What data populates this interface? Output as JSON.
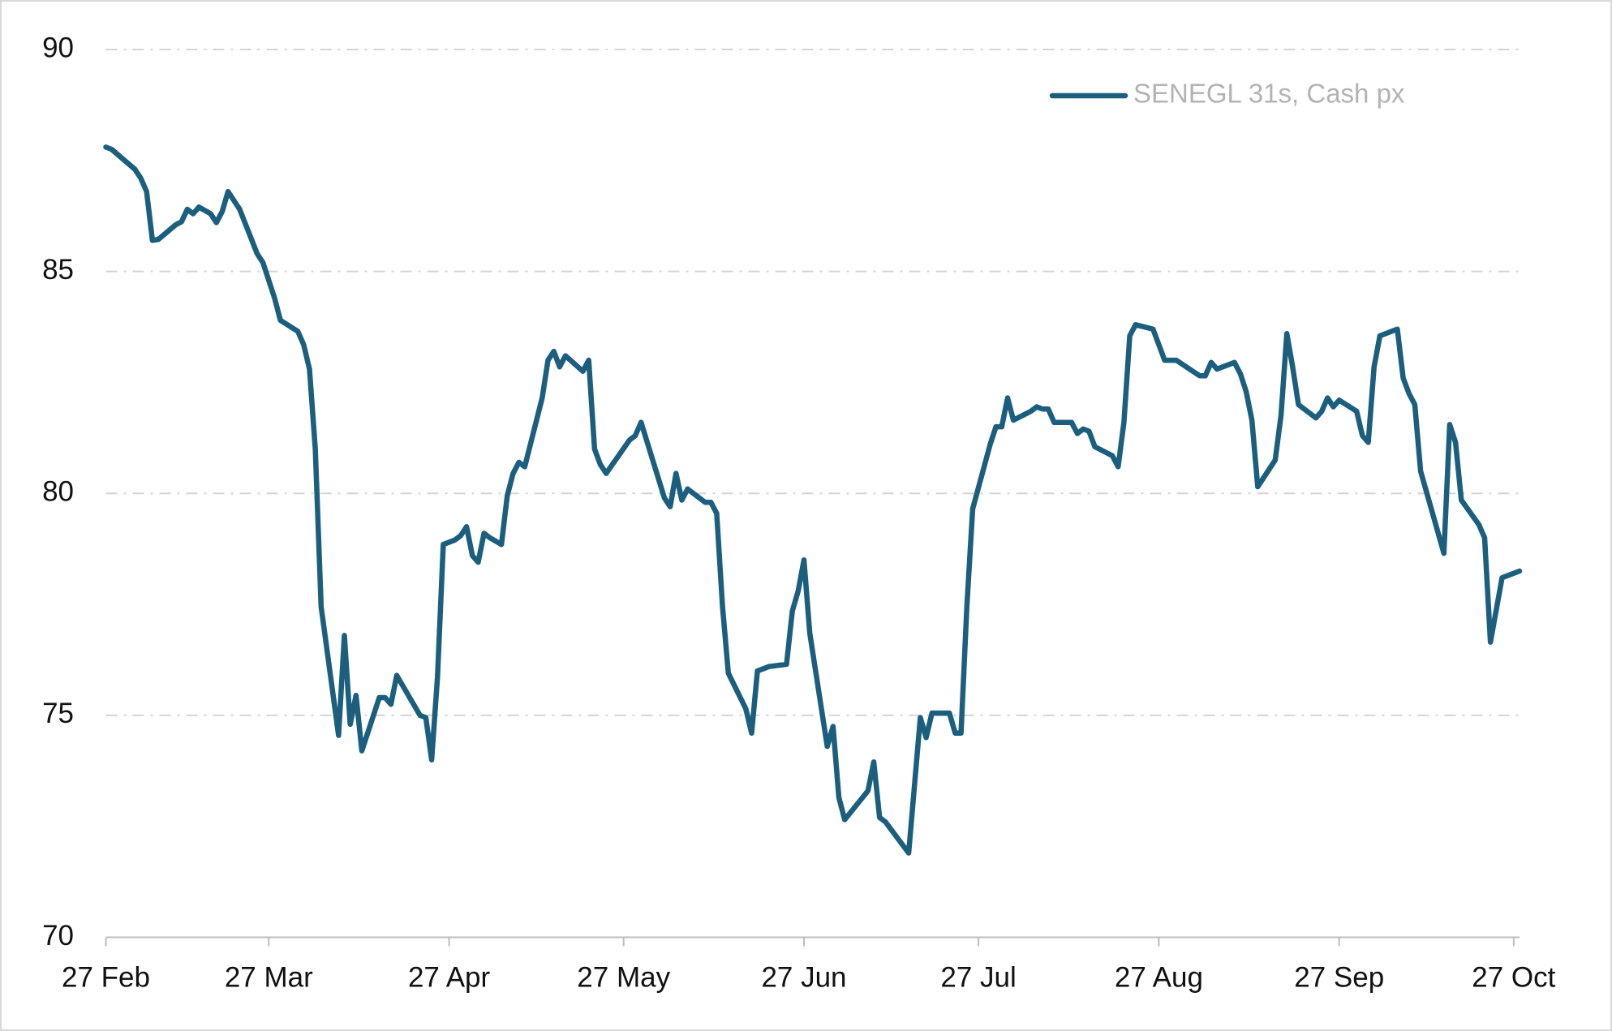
{
  "chart_data": {
    "type": "line",
    "x": [
      "27 Feb",
      "28 Feb",
      "4 Mar",
      "5 Mar",
      "6 Mar",
      "7 Mar",
      "8 Mar",
      "11 Mar",
      "12 Mar",
      "13 Mar",
      "14 Mar",
      "15 Mar",
      "17 Mar",
      "18 Mar",
      "19 Mar",
      "20 Mar",
      "22 Mar",
      "25 Mar",
      "26 Mar",
      "28 Mar",
      "29 Mar",
      "1 Apr",
      "2 Apr",
      "3 Apr",
      "4 Apr",
      "5 Apr",
      "8 Apr",
      "9 Apr",
      "10 Apr",
      "11 Apr",
      "12 Apr",
      "15 Apr",
      "16 Apr",
      "17 Apr",
      "18 Apr",
      "22 Apr",
      "23 Apr",
      "24 Apr",
      "25 Apr",
      "26 Apr",
      "28 Apr",
      "29 Apr",
      "30 Apr",
      "1 May",
      "2 May",
      "3 May",
      "4 May",
      "6 May",
      "7 May",
      "8 May",
      "9 May",
      "10 May",
      "13 May",
      "14 May",
      "15 May",
      "16 May",
      "17 May",
      "20 May",
      "21 May",
      "22 May",
      "23 May",
      "24 May",
      "28 May",
      "29 May",
      "30 May",
      "3 Jun",
      "4 Jun",
      "5 Jun",
      "6 Jun",
      "7 Jun",
      "10 Jun",
      "11 Jun",
      "12 Jun",
      "13 Jun",
      "14 Jun",
      "17 Jun",
      "18 Jun",
      "19 Jun",
      "20 Jun",
      "21 Jun",
      "24 Jun",
      "25 Jun",
      "26 Jun",
      "27 Jun",
      "28 Jun",
      "1 Jul",
      "2 Jul",
      "3 Jul",
      "4 Jul",
      "8 Jul",
      "9 Jul",
      "10 Jul",
      "11 Jul",
      "15 Jul",
      "17 Jul",
      "18 Jul",
      "19 Jul",
      "22 Jul",
      "23 Jul",
      "24 Jul",
      "25 Jul",
      "26 Jul",
      "29 Jul",
      "30 Jul",
      "31 Jul",
      "1 Aug",
      "2 Aug",
      "5 Aug",
      "6 Aug",
      "7 Aug",
      "8 Aug",
      "9 Aug",
      "12 Aug",
      "13 Aug",
      "14 Aug",
      "15 Aug",
      "16 Aug",
      "19 Aug",
      "20 Aug",
      "21 Aug",
      "22 Aug",
      "23 Aug",
      "26 Aug",
      "27 Aug",
      "28 Aug",
      "30 Aug",
      "3 Sep",
      "4 Sep",
      "5 Sep",
      "6 Sep",
      "9 Sep",
      "10 Sep",
      "11 Sep",
      "12 Sep",
      "13 Sep",
      "16 Sep",
      "17 Sep",
      "18 Sep",
      "19 Sep",
      "20 Sep",
      "23 Sep",
      "24 Sep",
      "25 Sep",
      "26 Sep",
      "27 Sep",
      "30 Sep",
      "1 Oct",
      "2 Oct",
      "3 Oct",
      "4 Oct",
      "7 Oct",
      "8 Oct",
      "9 Oct",
      "10 Oct",
      "11 Oct",
      "15 Oct",
      "16 Oct",
      "17 Oct",
      "18 Oct",
      "21 Oct",
      "22 Oct",
      "23 Oct",
      "25 Oct",
      "28 Oct"
    ],
    "series": [
      {
        "name": "SENEGL 31s, Cash px",
        "color": "#1b5e7e",
        "values": [
          87.8,
          87.75,
          87.3,
          87.1,
          86.8,
          85.7,
          85.72,
          86.05,
          86.12,
          86.4,
          86.3,
          86.45,
          86.3,
          86.1,
          86.35,
          86.8,
          86.4,
          85.4,
          85.2,
          84.4,
          83.9,
          83.65,
          83.35,
          82.8,
          81.0,
          77.45,
          74.55,
          76.8,
          74.8,
          75.45,
          74.2,
          75.4,
          75.4,
          75.25,
          75.9,
          75.0,
          74.95,
          74.0,
          75.85,
          78.85,
          78.95,
          79.05,
          79.25,
          78.6,
          78.45,
          79.1,
          79.0,
          78.85,
          79.95,
          80.45,
          80.7,
          80.6,
          82.15,
          83.0,
          83.2,
          82.85,
          83.1,
          82.75,
          83.0,
          81.0,
          80.65,
          80.45,
          81.2,
          81.3,
          81.6,
          79.9,
          79.7,
          80.45,
          79.85,
          80.1,
          79.8,
          79.8,
          79.55,
          77.45,
          75.95,
          75.15,
          74.6,
          76.0,
          76.05,
          76.1,
          76.15,
          77.35,
          77.8,
          78.5,
          76.85,
          74.3,
          74.75,
          73.15,
          72.65,
          73.3,
          73.95,
          72.7,
          72.6,
          71.9,
          74.95,
          74.5,
          75.05,
          75.05,
          74.6,
          74.6,
          77.45,
          79.65,
          81.1,
          81.5,
          81.5,
          82.15,
          81.65,
          81.85,
          81.95,
          81.9,
          81.9,
          81.6,
          81.6,
          81.35,
          81.45,
          81.4,
          81.05,
          80.85,
          80.6,
          81.6,
          83.55,
          83.8,
          83.7,
          83.35,
          83.0,
          83.0,
          82.65,
          82.65,
          82.95,
          82.8,
          82.95,
          82.7,
          82.3,
          81.65,
          80.15,
          80.75,
          81.75,
          83.6,
          82.85,
          82.0,
          81.7,
          81.85,
          82.15,
          81.95,
          82.1,
          81.85,
          81.3,
          81.15,
          82.85,
          83.55,
          83.7,
          82.6,
          82.25,
          82.0,
          80.5,
          78.65,
          81.55,
          81.15,
          79.85,
          79.3,
          79.0,
          76.65,
          78.1,
          78.25
        ]
      }
    ],
    "xlim": [
      "27 Feb",
      "28 Oct"
    ],
    "xticks": [
      "27 Feb",
      "27 Mar",
      "27 Apr",
      "27 May",
      "27 Jun",
      "27 Jul",
      "27 Aug",
      "27 Sep",
      "27 Oct"
    ],
    "ylim": [
      70,
      90
    ],
    "yticks": [
      70,
      75,
      80,
      85,
      90
    ],
    "grid": true,
    "legend": "upper right"
  }
}
